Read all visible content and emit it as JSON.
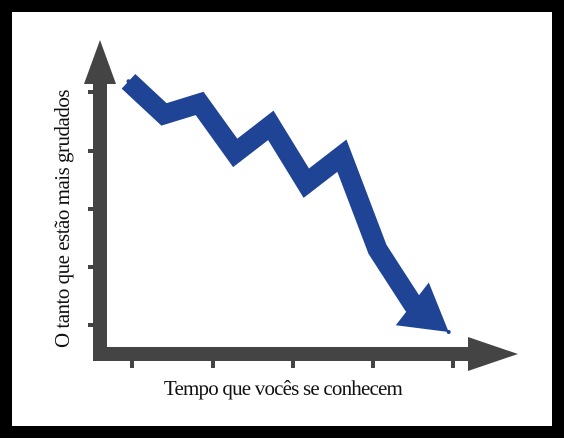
{
  "chart_data": {
    "type": "line",
    "title": "",
    "xlabel": "Tempo que vocês se conhecem",
    "ylabel": "O tanto que estão mais grudados",
    "x": [
      0,
      1,
      2,
      3,
      4,
      5,
      6,
      7,
      8,
      9
    ],
    "values": [
      9.3,
      8.1,
      8.5,
      6.7,
      7.7,
      5.6,
      6.6,
      3.2,
      1.2,
      0.2
    ],
    "xlim": [
      -0.8,
      9.6
    ],
    "ylim": [
      -0.6,
      10.8
    ],
    "grid": false,
    "legend": "none",
    "series_color": "#1f4496",
    "axis_color": "#444444"
  }
}
